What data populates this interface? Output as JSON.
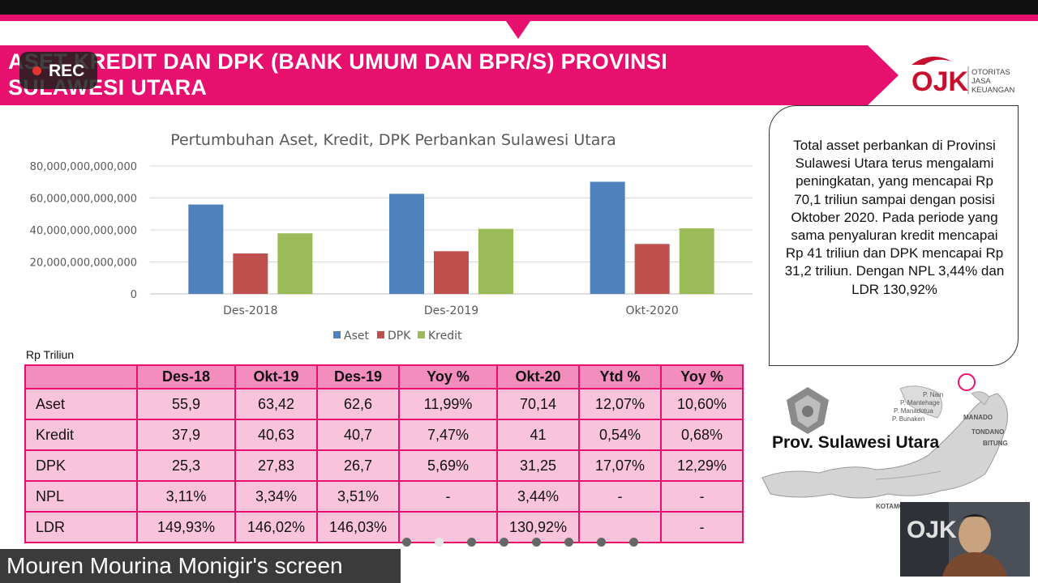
{
  "slide": {
    "title_line1": "ASET KREDIT DAN DPK (BANK UMUM DAN BPR/S) PROVINSI",
    "title_line2": "SULAWESI UTARA"
  },
  "recording": {
    "label": "REC"
  },
  "logo": {
    "mark": "OJK",
    "line1": "OTORITAS",
    "line2": "JASA",
    "line3": "KEUANGAN"
  },
  "chart_data": {
    "type": "bar",
    "title": "Pertumbuhan Aset, Kredit, DPK Perbankan Sulawesi Utara",
    "categories": [
      "Des-2018",
      "Des-2019",
      "Okt-2020"
    ],
    "series": [
      {
        "name": "Aset",
        "color": "#4f81bd",
        "values": [
          55900000000000,
          62600000000000,
          70140000000000
        ]
      },
      {
        "name": "DPK",
        "color": "#c0504d",
        "values": [
          25300000000000,
          26700000000000,
          31250000000000
        ]
      },
      {
        "name": "Kredit",
        "color": "#9bbb59",
        "values": [
          37900000000000,
          40700000000000,
          41000000000000
        ]
      }
    ],
    "ylim": [
      0,
      80000000000000
    ],
    "yticks": [
      "0",
      "20,000,000,000,000",
      "40,000,000,000,000",
      "60,000,000,000,000",
      "80,000,000,000,000"
    ],
    "grid": true,
    "legend": "bottom"
  },
  "table": {
    "unit": "Rp Triliun",
    "headers": [
      "",
      "Des-18",
      "Okt-19",
      "Des-19",
      "Yoy %",
      "Okt-20",
      "Ytd %",
      "Yoy %"
    ],
    "rows": [
      [
        "Aset",
        "55,9",
        "63,42",
        "62,6",
        "11,99%",
        "70,14",
        "12,07%",
        "10,60%"
      ],
      [
        "Kredit",
        "37,9",
        "40,63",
        "40,7",
        "7,47%",
        "41",
        "0,54%",
        "0,68%"
      ],
      [
        "DPK",
        "25,3",
        "27,83",
        "26,7",
        "5,69%",
        "31,25",
        "17,07%",
        "12,29%"
      ],
      [
        "NPL",
        "3,11%",
        "3,34%",
        "3,51%",
        "-",
        "3,44%",
        "-",
        "-"
      ],
      [
        "LDR",
        "149,93%",
        "146,02%",
        "146,03%",
        "",
        "130,92%",
        "",
        "-"
      ]
    ]
  },
  "info": {
    "text": "Total asset perbankan di Provinsi Sulawesi Utara terus mengalami peningkatan, yang mencapai Rp 70,1 triliun sampai dengan posisi Oktober 2020. Pada periode yang sama penyaluran kredit mencapai Rp 41 triliun dan DPK mencapai Rp 31,2 triliun. Dengan NPL 3,44% dan LDR 130,92%"
  },
  "map": {
    "province_label": "Prov. Sulawesi Utara",
    "places": [
      "P. Nain",
      "P. Mantehage",
      "P. Manadotua",
      "P. Bunaken",
      "MANADO",
      "TONDANO",
      "BITUNG",
      "KOTAMOBAGU"
    ]
  },
  "screen_share": {
    "label": "Mouren Mourina Monigir's screen"
  },
  "video": {
    "overlay_text": "OJK"
  }
}
